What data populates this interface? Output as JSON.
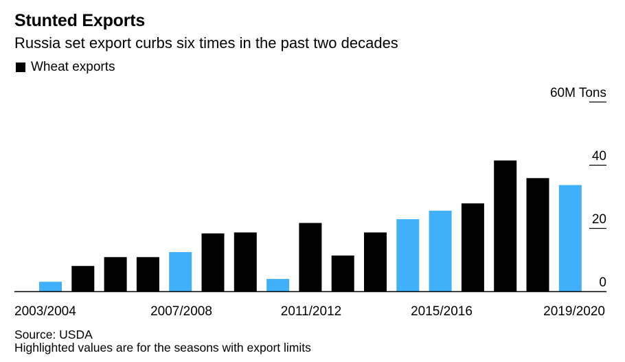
{
  "header": {
    "title": "Stunted Exports",
    "subtitle": "Russia set export curbs six times in the past two decades"
  },
  "legend": {
    "label": "Wheat exports"
  },
  "footer": {
    "source": "Source: USDA",
    "note": "Highlighted values are for the seasons with export limits"
  },
  "colors": {
    "normal": "#000000",
    "highlight": "#3fb0f9"
  },
  "chart_data": {
    "type": "bar",
    "categories": [
      "2003/2004",
      "2004/2005",
      "2005/2006",
      "2006/2007",
      "2007/2008",
      "2008/2009",
      "2009/2010",
      "2010/2011",
      "2011/2012",
      "2012/2013",
      "2013/2014",
      "2014/2015",
      "2015/2016",
      "2016/2017",
      "2017/2018",
      "2018/2019",
      "2019/2020"
    ],
    "values": [
      3,
      8,
      10.8,
      10.8,
      12.4,
      18.3,
      18.6,
      3.9,
      21.6,
      11.3,
      18.6,
      22.8,
      25.5,
      27.8,
      41.4,
      35.8,
      33.6
    ],
    "highlighted": [
      true,
      false,
      false,
      false,
      true,
      false,
      false,
      true,
      false,
      false,
      false,
      true,
      true,
      false,
      false,
      false,
      true
    ],
    "series": [
      {
        "name": "Wheat exports"
      }
    ],
    "ylim": [
      0,
      60
    ],
    "y_ticks": [
      0,
      20,
      40,
      60
    ],
    "y_tick_labels": [
      "0",
      "20",
      "40",
      "60M Tons"
    ],
    "x_tick_labels": [
      "2003/2004",
      "2007/2008",
      "2011/2012",
      "2015/2016",
      "2019/2020"
    ],
    "x_tick_index": [
      0,
      4,
      8,
      12,
      16
    ],
    "grid": false
  }
}
